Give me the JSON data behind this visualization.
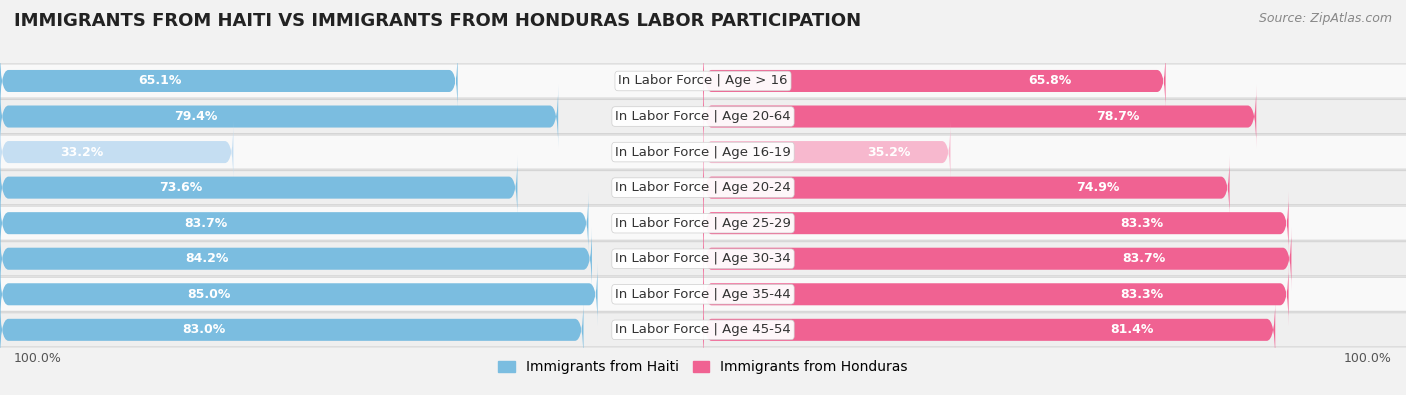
{
  "title": "IMMIGRANTS FROM HAITI VS IMMIGRANTS FROM HONDURAS LABOR PARTICIPATION",
  "source": "Source: ZipAtlas.com",
  "categories": [
    "In Labor Force | Age > 16",
    "In Labor Force | Age 20-64",
    "In Labor Force | Age 16-19",
    "In Labor Force | Age 20-24",
    "In Labor Force | Age 25-29",
    "In Labor Force | Age 30-34",
    "In Labor Force | Age 35-44",
    "In Labor Force | Age 45-54"
  ],
  "haiti_values": [
    65.1,
    79.4,
    33.2,
    73.6,
    83.7,
    84.2,
    85.0,
    83.0
  ],
  "honduras_values": [
    65.8,
    78.7,
    35.2,
    74.9,
    83.3,
    83.7,
    83.3,
    81.4
  ],
  "haiti_color": "#7bbde0",
  "honduras_color": "#f06292",
  "haiti_color_light": "#c5def2",
  "honduras_color_light": "#f7b8ce",
  "bar_height": 0.62,
  "background_color": "#f2f2f2",
  "row_bg_even": "#f9f9f9",
  "row_bg_odd": "#efefef",
  "max_value": 100.0,
  "title_fontsize": 13,
  "label_fontsize": 9.5,
  "value_fontsize": 9,
  "legend_fontsize": 10,
  "source_fontsize": 9,
  "axis_label_fontsize": 9
}
